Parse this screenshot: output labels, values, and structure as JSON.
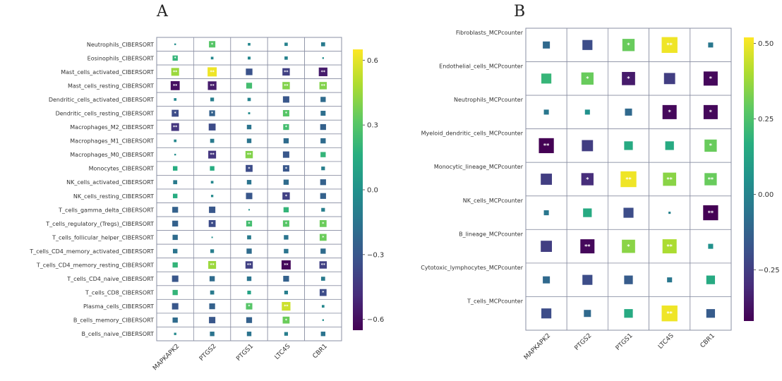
{
  "chart_data": [
    {
      "panel": "A",
      "type": "heatmap",
      "title": "",
      "columns": [
        "MAPKAPK2",
        "PTGS2",
        "PTGS1",
        "LTC4S",
        "CBR1"
      ],
      "rows": [
        "Neutrophils_CIBERSORT",
        "Eosinophils_CIBERSORT",
        "Mast_cells_activated_CIBERSORT",
        "Mast_cells_resting_CIBERSORT",
        "Dendritic_cells_activated_CIBERSORT",
        "Dendritic_cells_resting_CIBERSORT",
        "Macrophages_M2_CIBERSORT",
        "Macrophages_M1_CIBERSORT",
        "Macrophages_M0_CIBERSORT",
        "Monocytes_CIBERSORT",
        "NK_cells_activated_CIBERSORT",
        "NK_cells_resting_CIBERSORT",
        "T_cells_gamma_delta_CIBERSORT",
        "T_cells_regulatory_(Tregs)_CIBERSORT",
        "T_cells_follicular_helper_CIBERSORT",
        "T_cells_CD4_memory_activated_CIBERSORT",
        "T_cells_CD4_memory_resting_CIBERSORT",
        "T_cells_CD4_naive_CIBERSORT",
        "T_cells_CD8_CIBERSORT",
        "Plasma_cells_CIBERSORT",
        "B_cells_memory_CIBERSORT",
        "B_cells_naive_CIBERSORT"
      ],
      "values": [
        [
          -0.02,
          0.3,
          -0.05,
          -0.08,
          -0.12
        ],
        [
          0.2,
          -0.05,
          -0.06,
          -0.08,
          -0.02
        ],
        [
          0.45,
          0.62,
          -0.32,
          -0.4,
          -0.55
        ],
        [
          -0.6,
          -0.55,
          0.25,
          0.4,
          0.4
        ],
        [
          -0.05,
          -0.1,
          -0.08,
          -0.3,
          -0.2
        ],
        [
          -0.35,
          -0.25,
          -0.03,
          0.3,
          -0.18
        ],
        [
          -0.45,
          -0.35,
          -0.15,
          0.25,
          -0.25
        ],
        [
          -0.05,
          -0.12,
          -0.15,
          -0.2,
          -0.2
        ],
        [
          -0.02,
          -0.45,
          0.4,
          -0.3,
          0.2
        ],
        [
          0.15,
          0.15,
          -0.35,
          -0.3,
          -0.1
        ],
        [
          -0.12,
          -0.05,
          -0.15,
          -0.2,
          -0.25
        ],
        [
          0.15,
          -0.04,
          -0.3,
          -0.4,
          -0.25
        ],
        [
          -0.25,
          -0.3,
          -0.01,
          0.2,
          -0.1
        ],
        [
          -0.25,
          -0.35,
          0.25,
          0.3,
          0.35
        ],
        [
          -0.2,
          -0.01,
          -0.12,
          -0.15,
          0.35
        ],
        [
          -0.15,
          -0.1,
          -0.2,
          -0.15,
          -0.2
        ],
        [
          0.2,
          0.45,
          -0.4,
          -0.62,
          -0.4
        ],
        [
          -0.3,
          -0.2,
          -0.15,
          -0.25,
          -0.12
        ],
        [
          0.2,
          -0.12,
          0.1,
          -0.1,
          -0.35
        ],
        [
          -0.3,
          -0.25,
          0.3,
          0.55,
          -0.05
        ],
        [
          -0.2,
          -0.3,
          -0.25,
          0.35,
          -0.02
        ],
        [
          -0.04,
          -0.15,
          -0.15,
          -0.1,
          -0.15
        ]
      ],
      "stars": [
        [
          0,
          1,
          0,
          0,
          0
        ],
        [
          1,
          0,
          0,
          0,
          0
        ],
        [
          2,
          2,
          0,
          2,
          2
        ],
        [
          2,
          2,
          0,
          2,
          2
        ],
        [
          0,
          0,
          0,
          0,
          0
        ],
        [
          1,
          1,
          0,
          1,
          0
        ],
        [
          2,
          0,
          0,
          1,
          0
        ],
        [
          0,
          0,
          0,
          0,
          0
        ],
        [
          0,
          2,
          2,
          0,
          0
        ],
        [
          0,
          0,
          1,
          1,
          0
        ],
        [
          0,
          0,
          0,
          0,
          0
        ],
        [
          0,
          0,
          0,
          1,
          0
        ],
        [
          0,
          0,
          0,
          0,
          0
        ],
        [
          0,
          1,
          1,
          1,
          1
        ],
        [
          0,
          0,
          0,
          0,
          1
        ],
        [
          0,
          0,
          0,
          0,
          0
        ],
        [
          0,
          2,
          2,
          2,
          2
        ],
        [
          0,
          0,
          0,
          0,
          0
        ],
        [
          0,
          0,
          0,
          0,
          1
        ],
        [
          0,
          0,
          1,
          2,
          0
        ],
        [
          0,
          0,
          0,
          1,
          0
        ],
        [
          0,
          0,
          0,
          0,
          0
        ]
      ],
      "colorbar": {
        "range": [
          -0.65,
          0.65
        ],
        "ticks": [
          0.6,
          0.3,
          0.0,
          -0.3,
          -0.6
        ],
        "tick_labels": [
          "0.6",
          "0.3",
          "0.0",
          "−0.3",
          "−0.6"
        ]
      }
    },
    {
      "panel": "B",
      "type": "heatmap",
      "title": "",
      "columns": [
        "MAPKAPK2",
        "PTGS2",
        "PTGS1",
        "LTC4S",
        "CBR1"
      ],
      "rows": [
        "Fibroblasts_MCPcounter",
        "Endothelial_cells_MCPcounter",
        "Neutrophils_MCPcounter",
        "Myeloid_dendritic_cells_MCPcounter",
        "Monocytic_lineage_MCPcounter",
        "NK_cells_MCPcounter",
        "B_lineage_MCPcounter",
        "Cytotoxic_lymphocytes_MCPcounter",
        "T_cells_MCPcounter"
      ],
      "values": [
        [
          -0.1,
          -0.2,
          0.3,
          0.5,
          -0.05
        ],
        [
          0.2,
          0.3,
          -0.35,
          -0.25,
          -0.4
        ],
        [
          -0.05,
          0.05,
          -0.1,
          -0.4,
          -0.4
        ],
        [
          -0.45,
          -0.25,
          0.15,
          0.15,
          0.3
        ],
        [
          -0.25,
          -0.3,
          0.5,
          0.35,
          0.3
        ],
        [
          -0.05,
          0.15,
          -0.2,
          -0.01,
          -0.45
        ],
        [
          -0.25,
          -0.4,
          0.35,
          0.4,
          0.05
        ],
        [
          -0.1,
          -0.2,
          -0.15,
          -0.05,
          0.15
        ],
        [
          -0.2,
          -0.1,
          0.15,
          0.5,
          -0.15
        ]
      ],
      "stars": [
        [
          0,
          0,
          1,
          2,
          0
        ],
        [
          0,
          1,
          1,
          0,
          1
        ],
        [
          0,
          0,
          0,
          1,
          1
        ],
        [
          2,
          0,
          0,
          0,
          1
        ],
        [
          0,
          1,
          2,
          2,
          2
        ],
        [
          0,
          0,
          0,
          0,
          2
        ],
        [
          0,
          2,
          1,
          2,
          0
        ],
        [
          0,
          0,
          0,
          0,
          0
        ],
        [
          0,
          0,
          0,
          2,
          0
        ]
      ],
      "colorbar": {
        "range": [
          -0.42,
          0.52
        ],
        "ticks": [
          0.5,
          0.25,
          0.0,
          -0.25
        ],
        "tick_labels": [
          "0.50",
          "0.25",
          "0.00",
          "−0.25"
        ]
      }
    }
  ],
  "panel_labels": {
    "a": "A",
    "b": "B"
  }
}
